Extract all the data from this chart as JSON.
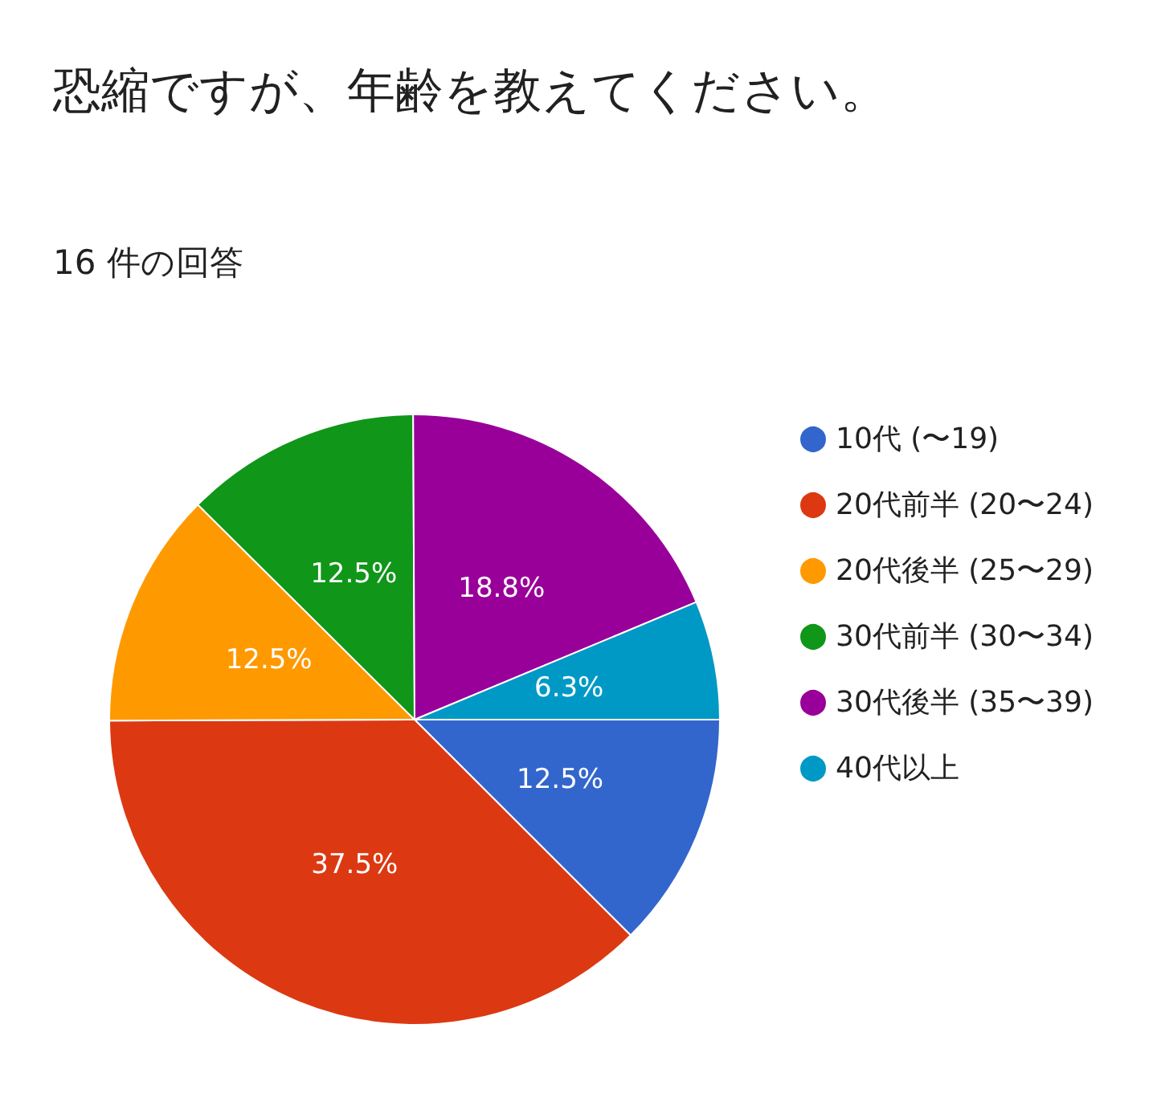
{
  "chart_data": {
    "type": "pie",
    "title": "恐縮ですが、年齢を教えてください。",
    "subtitle": "16 件の回答",
    "categories": [
      "10代 (〜19)",
      "20代前半 (20〜24)",
      "20代後半 (25〜29)",
      "30代前半 (30〜34)",
      "30代後半 (35〜39)",
      "40代以上"
    ],
    "values": [
      12.5,
      37.5,
      12.5,
      12.5,
      18.8,
      6.3
    ],
    "value_labels": [
      "12.5%",
      "37.5%",
      "12.5%",
      "12.5%",
      "18.8%",
      "6.3%"
    ],
    "colors": [
      "#3366cc",
      "#dc3912",
      "#ff9900",
      "#109618",
      "#990099",
      "#0099c6"
    ],
    "legend": "right"
  }
}
